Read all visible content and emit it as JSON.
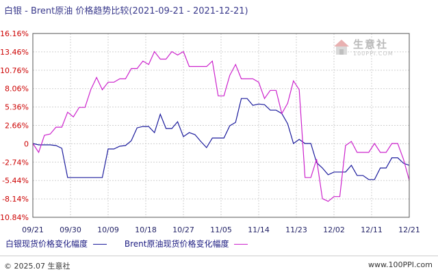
{
  "chart_data": {
    "type": "line",
    "title": "白银 - Brent原油 价格趋势比较(2021-09-21 - 2021-12-21)",
    "x_ticks": [
      "09/21",
      "09/30",
      "10/09",
      "10/18",
      "10/27",
      "11/05",
      "11/14",
      "11/23",
      "12/02",
      "12/11",
      "12/21"
    ],
    "y_ticks": [
      "16.16%",
      "13.46%",
      "10.76%",
      "8.06%",
      "5.36%",
      "2.66%",
      "0",
      "-2.74%",
      "-5.44%",
      "-8.14%",
      "-10.84%"
    ],
    "ylim": [
      -10.84,
      16.16
    ],
    "grid": true,
    "legend_position": "bottom-left",
    "series": [
      {
        "name": "白银现货价格变化幅度",
        "color": "#1a1a9c",
        "values": [
          [
            "09/21",
            0.0
          ],
          [
            "09/22",
            -0.2
          ],
          [
            "09/23",
            -0.2
          ],
          [
            "09/24",
            -0.2
          ],
          [
            "09/27",
            -0.3
          ],
          [
            "09/28",
            -0.7
          ],
          [
            "09/29",
            -5.0
          ],
          [
            "09/30",
            -5.0
          ],
          [
            "10/01",
            -5.0
          ],
          [
            "10/04",
            -5.0
          ],
          [
            "10/05",
            -5.0
          ],
          [
            "10/06",
            -5.0
          ],
          [
            "10/07",
            -5.0
          ],
          [
            "10/08",
            -0.8
          ],
          [
            "10/11",
            -0.8
          ],
          [
            "10/12",
            -0.4
          ],
          [
            "10/13",
            -0.3
          ],
          [
            "10/14",
            0.4
          ],
          [
            "10/15",
            2.3
          ],
          [
            "10/18",
            2.5
          ],
          [
            "10/19",
            2.5
          ],
          [
            "10/20",
            1.6
          ],
          [
            "10/21",
            4.3
          ],
          [
            "10/22",
            2.2
          ],
          [
            "10/25",
            2.2
          ],
          [
            "10/26",
            3.2
          ],
          [
            "10/27",
            1.0
          ],
          [
            "10/28",
            1.6
          ],
          [
            "10/29",
            1.3
          ],
          [
            "11/01",
            0.3
          ],
          [
            "11/02",
            -0.6
          ],
          [
            "11/03",
            0.8
          ],
          [
            "11/04",
            0.8
          ],
          [
            "11/05",
            0.8
          ],
          [
            "11/08",
            2.6
          ],
          [
            "11/09",
            3.1
          ],
          [
            "11/10",
            6.6
          ],
          [
            "11/11",
            6.6
          ],
          [
            "11/12",
            5.6
          ],
          [
            "11/15",
            5.8
          ],
          [
            "11/16",
            5.7
          ],
          [
            "11/17",
            4.9
          ],
          [
            "11/18",
            4.9
          ],
          [
            "11/19",
            4.4
          ],
          [
            "11/22",
            2.9
          ],
          [
            "11/23",
            0.0
          ],
          [
            "11/24",
            0.6
          ],
          [
            "11/25",
            0.0
          ],
          [
            "11/26",
            0.0
          ],
          [
            "11/29",
            -2.8
          ],
          [
            "11/30",
            -3.6
          ],
          [
            "12/01",
            -4.6
          ],
          [
            "12/02",
            -4.2
          ],
          [
            "12/03",
            -4.2
          ],
          [
            "12/06",
            -4.2
          ],
          [
            "12/07",
            -3.2
          ],
          [
            "12/08",
            -4.7
          ],
          [
            "12/09",
            -4.7
          ],
          [
            "12/10",
            -5.3
          ],
          [
            "12/13",
            -5.3
          ],
          [
            "12/14",
            -3.6
          ],
          [
            "12/15",
            -3.6
          ],
          [
            "12/16",
            -2.1
          ],
          [
            "12/17",
            -2.1
          ],
          [
            "12/20",
            -2.9
          ],
          [
            "12/21",
            -3.2
          ]
        ]
      },
      {
        "name": "Brent原油现货价格变化幅度",
        "color": "#cc22cc",
        "values": [
          [
            "09/21",
            0.0
          ],
          [
            "09/22",
            -1.3
          ],
          [
            "09/23",
            1.2
          ],
          [
            "09/24",
            1.4
          ],
          [
            "09/27",
            2.4
          ],
          [
            "09/28",
            2.4
          ],
          [
            "09/29",
            4.6
          ],
          [
            "09/30",
            3.9
          ],
          [
            "10/01",
            5.3
          ],
          [
            "10/04",
            5.3
          ],
          [
            "10/05",
            7.9
          ],
          [
            "10/06",
            9.7
          ],
          [
            "10/07",
            7.9
          ],
          [
            "10/08",
            9.0
          ],
          [
            "10/11",
            9.0
          ],
          [
            "10/12",
            9.5
          ],
          [
            "10/13",
            9.5
          ],
          [
            "10/14",
            11.0
          ],
          [
            "10/15",
            11.0
          ],
          [
            "10/18",
            12.1
          ],
          [
            "10/19",
            11.6
          ],
          [
            "10/20",
            13.5
          ],
          [
            "10/21",
            12.4
          ],
          [
            "10/22",
            12.4
          ],
          [
            "10/25",
            13.5
          ],
          [
            "10/26",
            13.0
          ],
          [
            "10/27",
            13.5
          ],
          [
            "10/28",
            11.3
          ],
          [
            "10/29",
            11.3
          ],
          [
            "11/01",
            11.3
          ],
          [
            "11/02",
            11.3
          ],
          [
            "11/03",
            12.1
          ],
          [
            "11/04",
            7.0
          ],
          [
            "11/05",
            7.0
          ],
          [
            "11/08",
            10.0
          ],
          [
            "11/09",
            11.6
          ],
          [
            "11/10",
            9.5
          ],
          [
            "11/11",
            9.5
          ],
          [
            "11/12",
            9.5
          ],
          [
            "11/15",
            9.0
          ],
          [
            "11/16",
            6.6
          ],
          [
            "11/17",
            7.8
          ],
          [
            "11/18",
            7.8
          ],
          [
            "11/19",
            4.4
          ],
          [
            "11/22",
            5.9
          ],
          [
            "11/23",
            9.2
          ],
          [
            "11/24",
            7.9
          ],
          [
            "11/25",
            -5.0
          ],
          [
            "11/26",
            -5.0
          ],
          [
            "11/29",
            -2.3
          ],
          [
            "11/30",
            -8.1
          ],
          [
            "12/01",
            -8.5
          ],
          [
            "12/02",
            -7.8
          ],
          [
            "12/03",
            -7.8
          ],
          [
            "12/06",
            -0.3
          ],
          [
            "12/07",
            0.3
          ],
          [
            "12/08",
            -1.3
          ],
          [
            "12/09",
            -1.3
          ],
          [
            "12/10",
            -1.3
          ],
          [
            "12/13",
            0.0
          ],
          [
            "12/14",
            -1.3
          ],
          [
            "12/15",
            -1.3
          ],
          [
            "12/16",
            0.0
          ],
          [
            "12/17",
            0.0
          ],
          [
            "12/20",
            -2.3
          ],
          [
            "12/21",
            -5.4
          ]
        ]
      }
    ]
  },
  "watermark": {
    "brand": "生意社",
    "url": "100PPI.COM"
  },
  "footer": {
    "copyright": "© 2025.07 生意社",
    "website": "www.100PPI.com"
  }
}
